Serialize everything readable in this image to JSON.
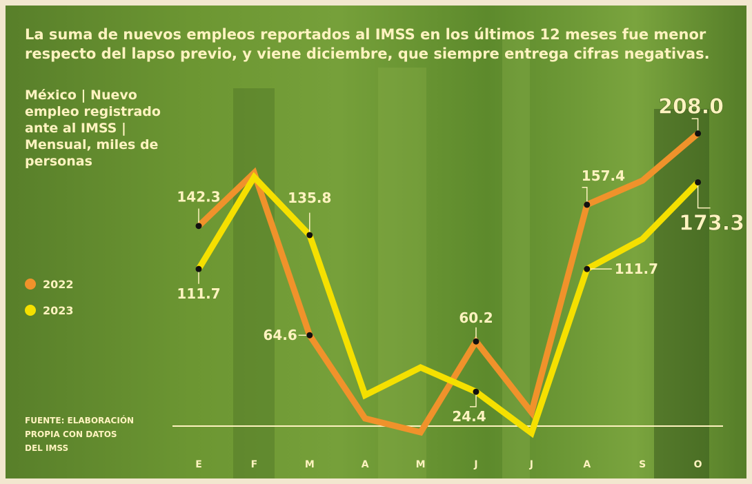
{
  "chart_data": {
    "type": "line",
    "title": "La suma de nuevos empleos reportados al IMSS en los últimos 12 meses fue menor respecto del lapso previo, y viene diciembre, que siempre entrega cifras negativas.",
    "subtitle": "México | Nuevo empleo registrado ante al IMSS | Mensual, miles de personas",
    "source": "FUENTE: ELABORACIÓN PROPIA CON DATOS DEL IMSS",
    "categories": [
      "E",
      "F",
      "M",
      "A",
      "M",
      "J",
      "J",
      "A",
      "S",
      "O"
    ],
    "series": [
      {
        "name": "2022",
        "color": "#f0922b",
        "values": [
          142.3,
          180,
          64.6,
          5.4,
          -4.4,
          60.2,
          9.8,
          157.4,
          174.5,
          208.0
        ],
        "value_labels": [
          "142.3",
          null,
          "64.6",
          null,
          null,
          "60.2",
          null,
          "157.4",
          null,
          "208.0"
        ]
      },
      {
        "name": "2023",
        "color": "#f5e000",
        "values": [
          111.7,
          177,
          135.8,
          22,
          41.7,
          24.4,
          -4.9,
          111.7,
          133,
          173.3
        ],
        "value_labels": [
          "111.7",
          null,
          "135.8",
          null,
          null,
          "24.4",
          null,
          "111.7",
          null,
          "173.3"
        ]
      }
    ],
    "ylim": [
      -12,
      215
    ]
  }
}
